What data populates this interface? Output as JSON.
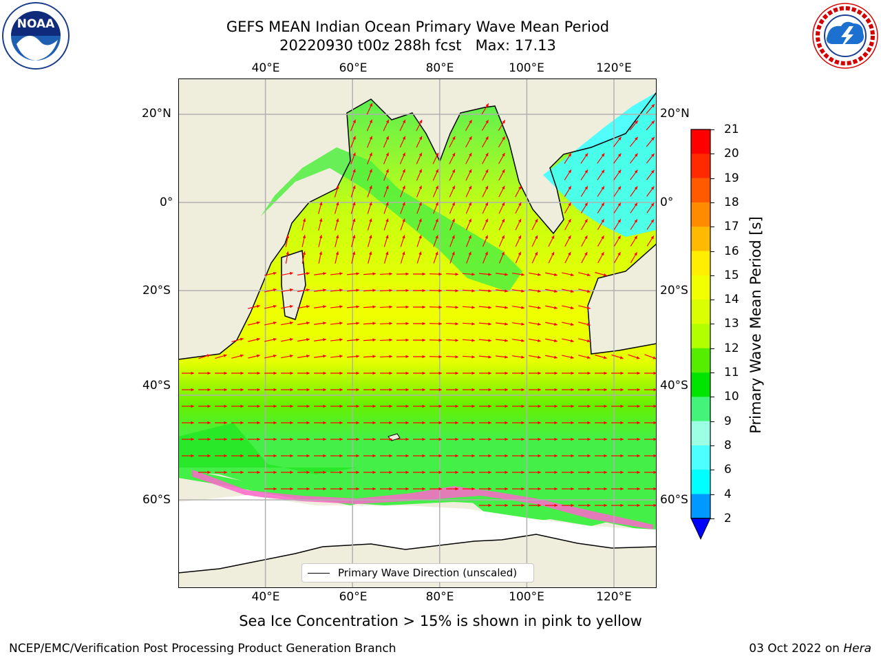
{
  "header": {
    "title_line1": "GEFS MEAN Indian Ocean Primary Wave Mean Period",
    "title_line2": "20220930 t00z 288h fcst   Max: 17.13"
  },
  "logos": {
    "left": {
      "name": "NOAA",
      "text": "NOAA",
      "ring_text": "NATIONAL OCEANIC AND ATMOSPHERIC ADMINISTRATION · U.S. DEPARTMENT OF COMMERCE"
    },
    "right": {
      "name": "National Weather Service",
      "ring_text": "NATIONAL WEATHER SERVICE"
    }
  },
  "map": {
    "lon_ticks_top": [
      "40°E",
      "60°E",
      "80°E",
      "100°E",
      "120°E"
    ],
    "lon_ticks_bottom": [
      "40°E",
      "60°E",
      "80°E",
      "100°E",
      "120°E"
    ],
    "lat_ticks_left": [
      "20°N",
      "0°",
      "20°S",
      "40°S",
      "60°S"
    ],
    "lat_ticks_right": [
      "20°N",
      "0°",
      "20°S",
      "40°S",
      "60°S"
    ],
    "lon_values": [
      40,
      60,
      80,
      100,
      120
    ],
    "lat_values": [
      20,
      0,
      -20,
      -40,
      -60
    ],
    "legend_label": "Primary Wave Direction (unscaled)",
    "colors": {
      "land": "#efeddb",
      "ice_free_background": "#ffffff",
      "arrows": "#ff0000",
      "grid": "#b0b0b0",
      "sea_ice": [
        "#ff66cc",
        "#ffaa55",
        "#ffd24d"
      ]
    }
  },
  "colorbar": {
    "label": "Primary Wave Mean Period [s]",
    "tick_labels": [
      "21",
      "20",
      "19",
      "18",
      "17",
      "16",
      "15",
      "14",
      "13",
      "12",
      "11",
      "10",
      "9",
      "8",
      "6",
      "4",
      "2"
    ],
    "bins": [
      {
        "range": "20-21",
        "color": "#ff0000"
      },
      {
        "range": "19-20",
        "color": "#ff2a00"
      },
      {
        "range": "18-19",
        "color": "#ff5a00"
      },
      {
        "range": "17-18",
        "color": "#ff8c00"
      },
      {
        "range": "16-17",
        "color": "#ffba00"
      },
      {
        "range": "15-16",
        "color": "#ffee00"
      },
      {
        "range": "14-15",
        "color": "#f2ff00"
      },
      {
        "range": "13-14",
        "color": "#d9ff00"
      },
      {
        "range": "12-13",
        "color": "#b2ff00"
      },
      {
        "range": "11-12",
        "color": "#55ee00"
      },
      {
        "range": "10-11",
        "color": "#00e400"
      },
      {
        "range": "9-10",
        "color": "#44f47a"
      },
      {
        "range": "8-9",
        "color": "#9cffe4"
      },
      {
        "range": "6-8",
        "color": "#4dffff"
      },
      {
        "range": "4-6",
        "color": "#00ffff"
      },
      {
        "range": "2-4",
        "color": "#0099ff"
      }
    ],
    "under_color": "#0000ff"
  },
  "caption": "Sea Ice Concentration > 15% is shown in pink to yellow",
  "footer": {
    "left": "NCEP/EMC/Verification Post Processing Product Generation Branch",
    "date": "03 Oct 2022 on ",
    "host": "Hera"
  }
}
